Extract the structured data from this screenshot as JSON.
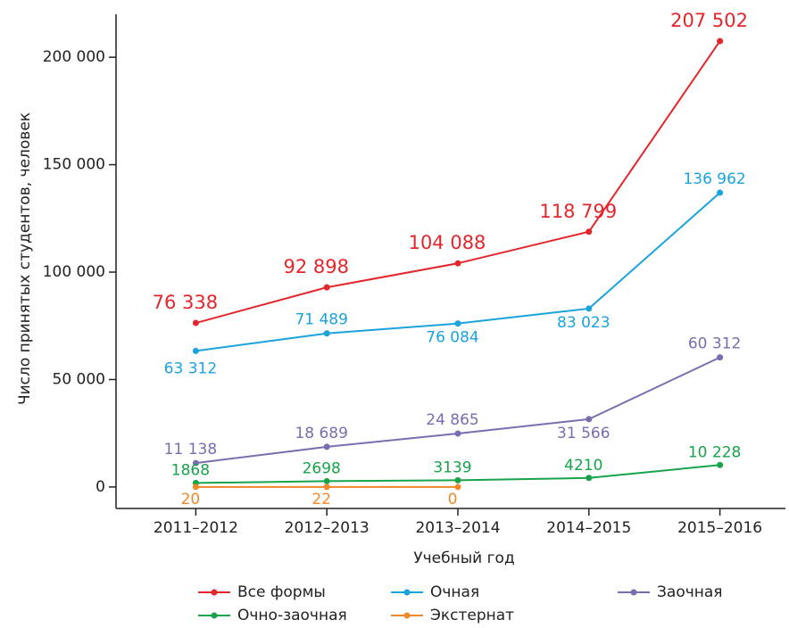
{
  "chart_data": {
    "type": "line",
    "x_label": "Учебный год",
    "y_label": "Число принятых студентов, человек",
    "categories": [
      "2011–2012",
      "2012–2013",
      "2013–2014",
      "2014–2015",
      "2015–2016"
    ],
    "series": [
      {
        "name": "Все формы",
        "color": "#e3262b",
        "values": [
          76338,
          92898,
          104088,
          118799,
          207502
        ],
        "value_labels": [
          "76 338",
          "92 898",
          "104 088",
          "118 799",
          "207 502"
        ]
      },
      {
        "name": "Очная",
        "color": "#1aa3dc",
        "values": [
          63312,
          71489,
          76084,
          83023,
          136962
        ],
        "value_labels": [
          "63 312",
          "71 489",
          "76 084",
          "83 023",
          "136 962"
        ]
      },
      {
        "name": "Заочная",
        "color": "#7b6cb0",
        "values": [
          11138,
          18689,
          24865,
          31566,
          60312
        ],
        "value_labels": [
          "11 138",
          "18 689",
          "24 865",
          "31 566",
          "60 312"
        ]
      },
      {
        "name": "Очно-заочная",
        "color": "#17a34a",
        "values": [
          1868,
          2698,
          3139,
          4210,
          10228
        ],
        "value_labels": [
          "1868",
          "2698",
          "3139",
          "4210",
          "10 228"
        ]
      },
      {
        "name": "Экстернат",
        "color": "#f0892a",
        "values": [
          20,
          22,
          0,
          null,
          null
        ],
        "value_labels": [
          "20",
          "22",
          "0",
          null,
          null
        ]
      }
    ],
    "ylim": [
      -10000,
      220000
    ],
    "yticks": [
      0,
      {
        "value": 50000,
        "label": "50 000"
      },
      {
        "value": 100000,
        "label": "100 000"
      },
      {
        "value": 150000,
        "label": "150 000"
      },
      {
        "value": 200000,
        "label": "200 000"
      }
    ],
    "grid": false,
    "legend": "bottom"
  }
}
